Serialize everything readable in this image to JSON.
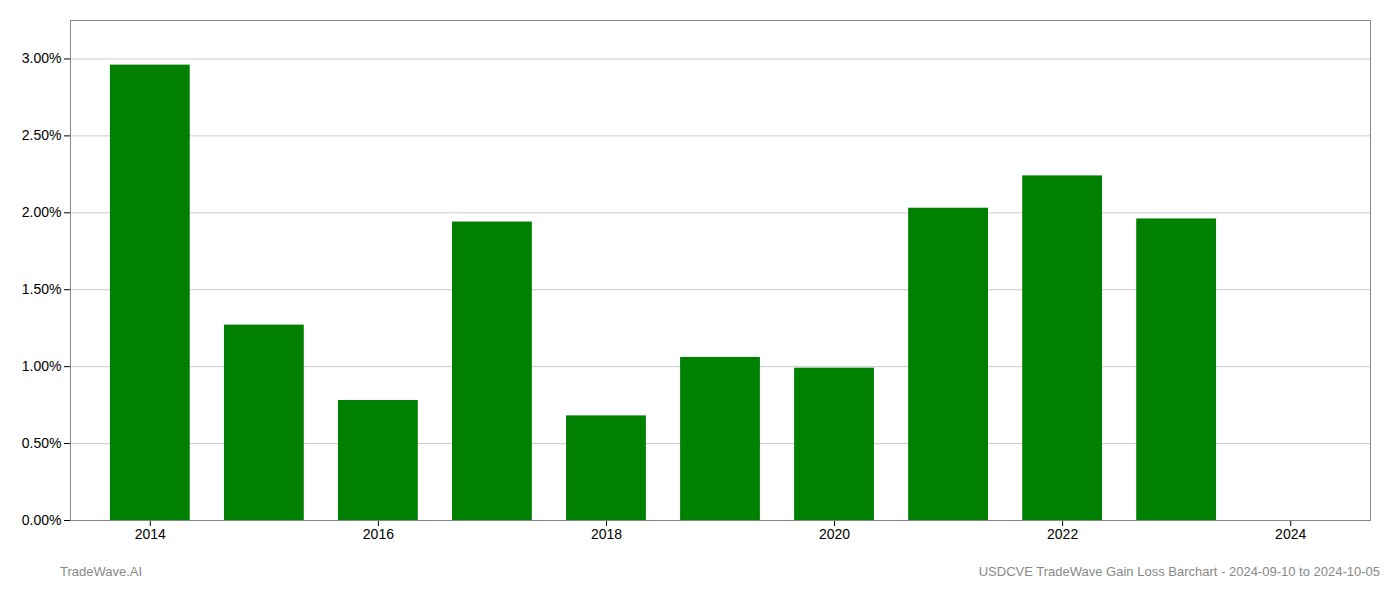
{
  "chart_data": {
    "type": "bar",
    "x": [
      2014,
      2015,
      2016,
      2017,
      2018,
      2019,
      2020,
      2021,
      2022,
      2023
    ],
    "values": [
      0.0296,
      0.0127,
      0.0078,
      0.0194,
      0.0068,
      0.0106,
      0.0099,
      0.0203,
      0.0224,
      0.0196
    ],
    "color": "#008000",
    "xlim": [
      2013.3,
      2024.7
    ],
    "xticks": [
      2014,
      2016,
      2018,
      2020,
      2022,
      2024
    ],
    "ylim": [
      0,
      0.0325
    ],
    "yticks": [
      {
        "value": 0.0,
        "label": "0.00%"
      },
      {
        "value": 0.005,
        "label": "0.50%"
      },
      {
        "value": 0.01,
        "label": "1.00%"
      },
      {
        "value": 0.015,
        "label": "1.50%"
      },
      {
        "value": 0.02,
        "label": "2.00%"
      },
      {
        "value": 0.025,
        "label": "2.50%"
      },
      {
        "value": 0.03,
        "label": "3.00%"
      }
    ],
    "grid": true,
    "annotations": [
      "TradeWave.AI",
      "USDCVE TradeWave Gain Loss Barchart - 2024-09-10 to 2024-10-05"
    ]
  }
}
